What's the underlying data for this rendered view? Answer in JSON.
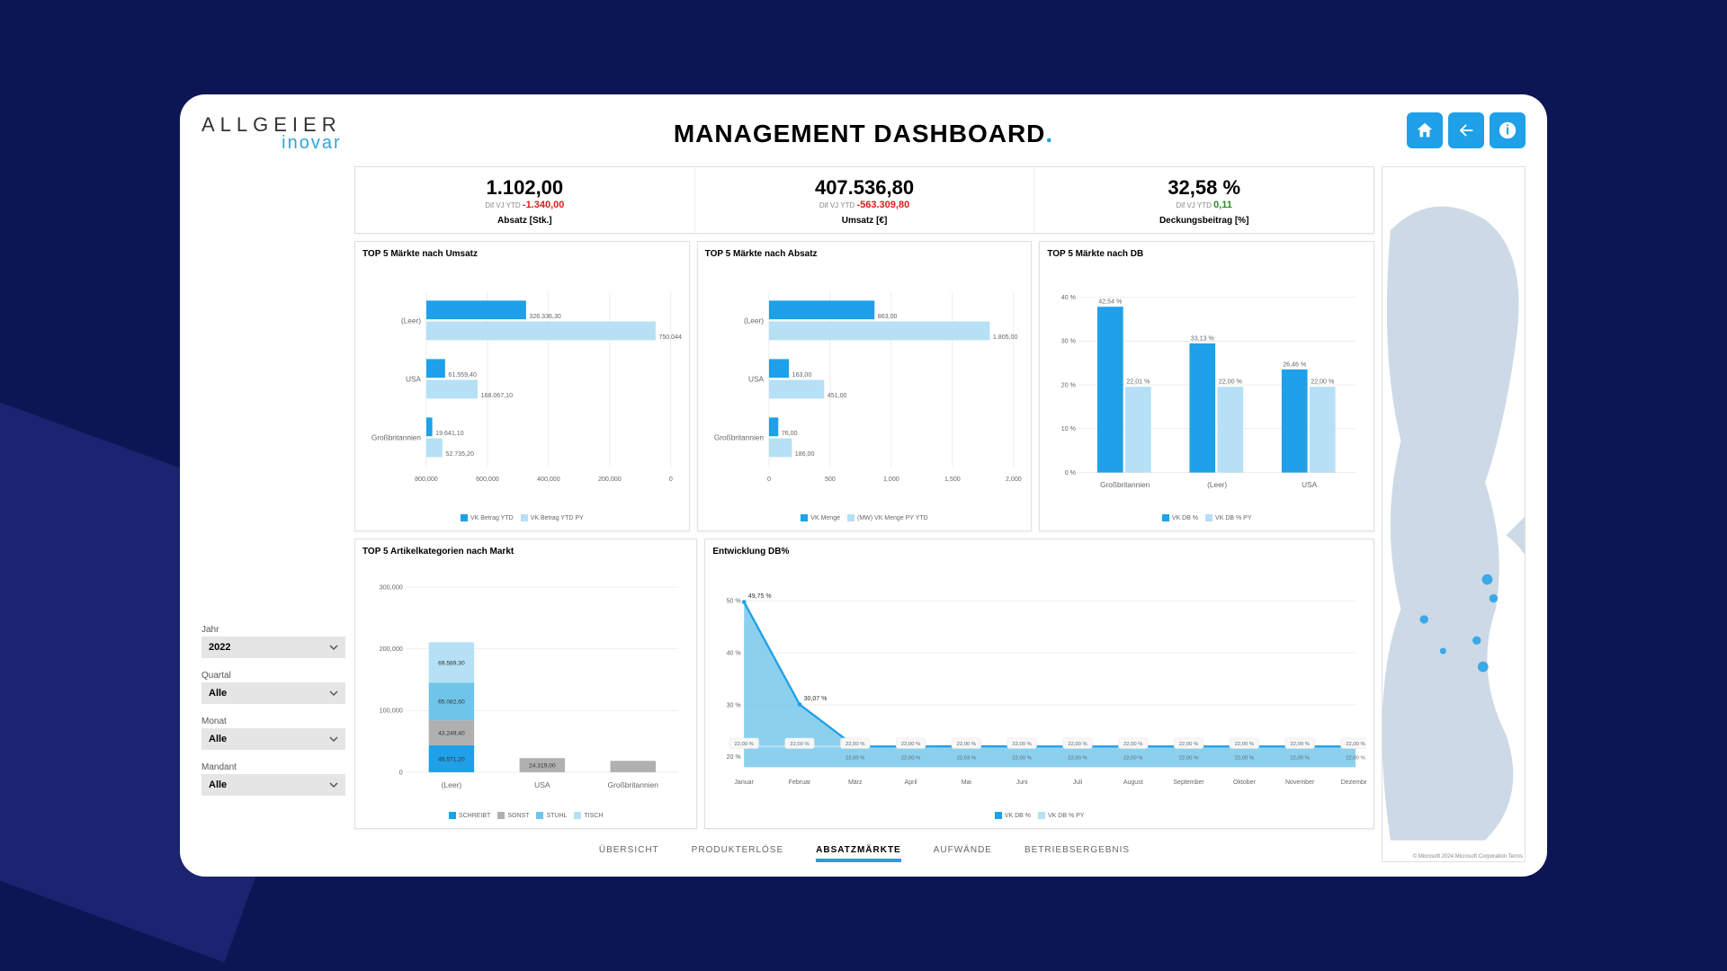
{
  "logo": {
    "main": "ALLGEIER",
    "sub": "inovar"
  },
  "title": "MANAGEMENT DASHBOARD",
  "colors": {
    "accent": "#1fa0e8",
    "accent_light": "#b5e0f5",
    "grey": "#b0b0b0",
    "grid": "#e0e0e0",
    "neg": "#d91e18",
    "pos": "#2e8b23",
    "text_muted": "#888888",
    "map_land": "#cdd9e6",
    "map_water": "#ffffff"
  },
  "filters": [
    {
      "label": "Jahr",
      "value": "2022"
    },
    {
      "label": "Quartal",
      "value": "Alle"
    },
    {
      "label": "Monat",
      "value": "Alle"
    },
    {
      "label": "Mandant",
      "value": "Alle"
    }
  ],
  "kpis": [
    {
      "value": "1.102,00",
      "diff_label": "Dif VJ YTD",
      "diff": "-1.340,00",
      "diff_class": "neg",
      "label": "Absatz [Stk.]"
    },
    {
      "value": "407.536,80",
      "diff_label": "Dif VJ YTD",
      "diff": "-563.309,80",
      "diff_class": "neg",
      "label": "Umsatz [€]"
    },
    {
      "value": "32,58 %",
      "diff_label": "Dif VJ YTD",
      "diff": "0,11",
      "diff_class": "pos",
      "label": "Deckungsbeitrag [%]"
    }
  ],
  "chart_umsatz": {
    "title": "TOP 5 Märkte nach Umsatz",
    "type": "grouped_hbar",
    "categories": [
      "(Leer)",
      "USA",
      "Großbritannien"
    ],
    "series": [
      {
        "name": "VK Betrag YTD",
        "color": "#1fa0e8",
        "values": [
          326336.3,
          61559.4,
          19641.1
        ],
        "labels": [
          "326.336,30",
          "61.559,40",
          "19.641,10"
        ]
      },
      {
        "name": "VK Betrag YTD PY",
        "color": "#b5e0f5",
        "values": [
          750044.3,
          168067.1,
          52735.2
        ],
        "labels": [
          "750.044,30",
          "168.067,10",
          "52.735,20"
        ]
      }
    ],
    "x_ticks": [
      "800,000",
      "600,000",
      "400,000",
      "200,000",
      "0"
    ],
    "xlim": [
      0,
      800000
    ]
  },
  "chart_absatz": {
    "title": "TOP 5 Märkte nach Absatz",
    "type": "grouped_hbar",
    "categories": [
      "(Leer)",
      "USA",
      "Großbritannien"
    ],
    "series": [
      {
        "name": "VK Menge",
        "color": "#1fa0e8",
        "values": [
          863,
          163,
          76
        ],
        "labels": [
          "863,00",
          "163,00",
          "76,00"
        ]
      },
      {
        "name": "(MW) VK Menge PY YTD",
        "color": "#b5e0f5",
        "values": [
          1805,
          451,
          186
        ],
        "labels": [
          "1.805,00",
          "451,00",
          "186,00"
        ]
      }
    ],
    "x_ticks": [
      "0",
      "500",
      "1,000",
      "1,500",
      "2,000"
    ],
    "xlim": [
      0,
      2000
    ]
  },
  "chart_db": {
    "title": "TOP 5 Märkte nach DB",
    "type": "grouped_vbar",
    "categories": [
      "Großbritannien",
      "(Leer)",
      "USA"
    ],
    "series": [
      {
        "name": "VK DB %",
        "color": "#1fa0e8",
        "values": [
          42.54,
          33.13,
          26.46
        ],
        "labels": [
          "42,54 %",
          "33,13 %",
          "26,46 %"
        ]
      },
      {
        "name": "VK DB % PY",
        "color": "#b5e0f5",
        "values": [
          22.01,
          22.0,
          22.0
        ],
        "labels": [
          "22,01 %",
          "22,00 %",
          "22,00 %"
        ]
      }
    ],
    "y_ticks": [
      "0 %",
      "10 %",
      "20 %",
      "30 %",
      "40 %"
    ],
    "ylim": [
      0,
      45
    ]
  },
  "chart_artikel": {
    "title": "TOP 5 Artikelkategorien nach Markt",
    "type": "stacked_vbar",
    "categories": [
      "(Leer)",
      "USA",
      "Großbritannien"
    ],
    "stacks": [
      "SCHREIBT",
      "SONST",
      "STUHL",
      "TISCH"
    ],
    "stack_colors": [
      "#1fa0e8",
      "#b0b0b0",
      "#6fc4ea",
      "#b5e0f5"
    ],
    "values": [
      [
        46571.2,
        43249.4,
        65082.6,
        69589.3
      ],
      [
        0,
        24319.0,
        0,
        0
      ],
      [
        0,
        19641.1,
        0,
        0
      ]
    ],
    "value_labels": [
      [
        "46.571,20",
        "43.249,40",
        "65.082,60",
        "69.589,30"
      ],
      [
        "",
        "24.319,00",
        "",
        ""
      ],
      [
        "",
        "",
        "",
        ""
      ]
    ],
    "y_ticks": [
      "0",
      "100,000",
      "200,000",
      "300,000"
    ],
    "ylim": [
      0,
      320000
    ]
  },
  "chart_entwicklung": {
    "title": "Entwicklung DB%",
    "type": "area_line",
    "categories": [
      "Januar",
      "Februar",
      "März",
      "April",
      "Mai",
      "Juni",
      "Juli",
      "August",
      "September",
      "Oktober",
      "November",
      "Dezember"
    ],
    "series": [
      {
        "name": "VK DB %",
        "color": "#1fa0e8",
        "fill": "#6fc4ea",
        "values": [
          49.75,
          30.07,
          22.0,
          22.0,
          22.03,
          22.0,
          22.0,
          22.0,
          22.0,
          22.0,
          22.0,
          22.0
        ],
        "labels": [
          "49,75 %",
          "30,07 %",
          "22,00 %",
          "22,00 %",
          "22,03 %",
          "22,00 %",
          "22,00 %",
          "22,00 %",
          "22,00 %",
          "22,00 %",
          "22,00 %",
          "22,00 %"
        ]
      },
      {
        "name": "VK DB % PY",
        "color": "#b5e0f5",
        "values": [
          22.0,
          22.0,
          22.0,
          22.0,
          22.0,
          22.0,
          22.0,
          22.0,
          22.0,
          22.0,
          22.0,
          22.0
        ],
        "labels": [
          "22,00 %",
          "22,00 %",
          "22,00 %",
          "22,00 %",
          "22,00 %",
          "22,00 %",
          "22,00 %",
          "22,00 %",
          "22,00 %",
          "22,00 %",
          "22,00 %",
          "22,00 %"
        ]
      }
    ],
    "y_ticks": [
      "20 %",
      "30 %",
      "40 %",
      "50 %"
    ],
    "ylim": [
      18,
      52
    ]
  },
  "map": {
    "attribution": "© Microsoft 2024 Microsoft Corporation Terms",
    "points": [
      {
        "x": 72,
        "y": 430,
        "r": 4
      },
      {
        "x": 132,
        "y": 392,
        "r": 5
      },
      {
        "x": 138,
        "y": 410,
        "r": 4
      },
      {
        "x": 122,
        "y": 450,
        "r": 4
      },
      {
        "x": 128,
        "y": 475,
        "r": 5
      },
      {
        "x": 90,
        "y": 460,
        "r": 3
      }
    ]
  },
  "tabs": [
    "ÜBERSICHT",
    "PRODUKTERLÖSE",
    "ABSATZMÄRKTE",
    "AUFWÄNDE",
    "BETRIEBSERGEBNIS"
  ],
  "active_tab": 2
}
